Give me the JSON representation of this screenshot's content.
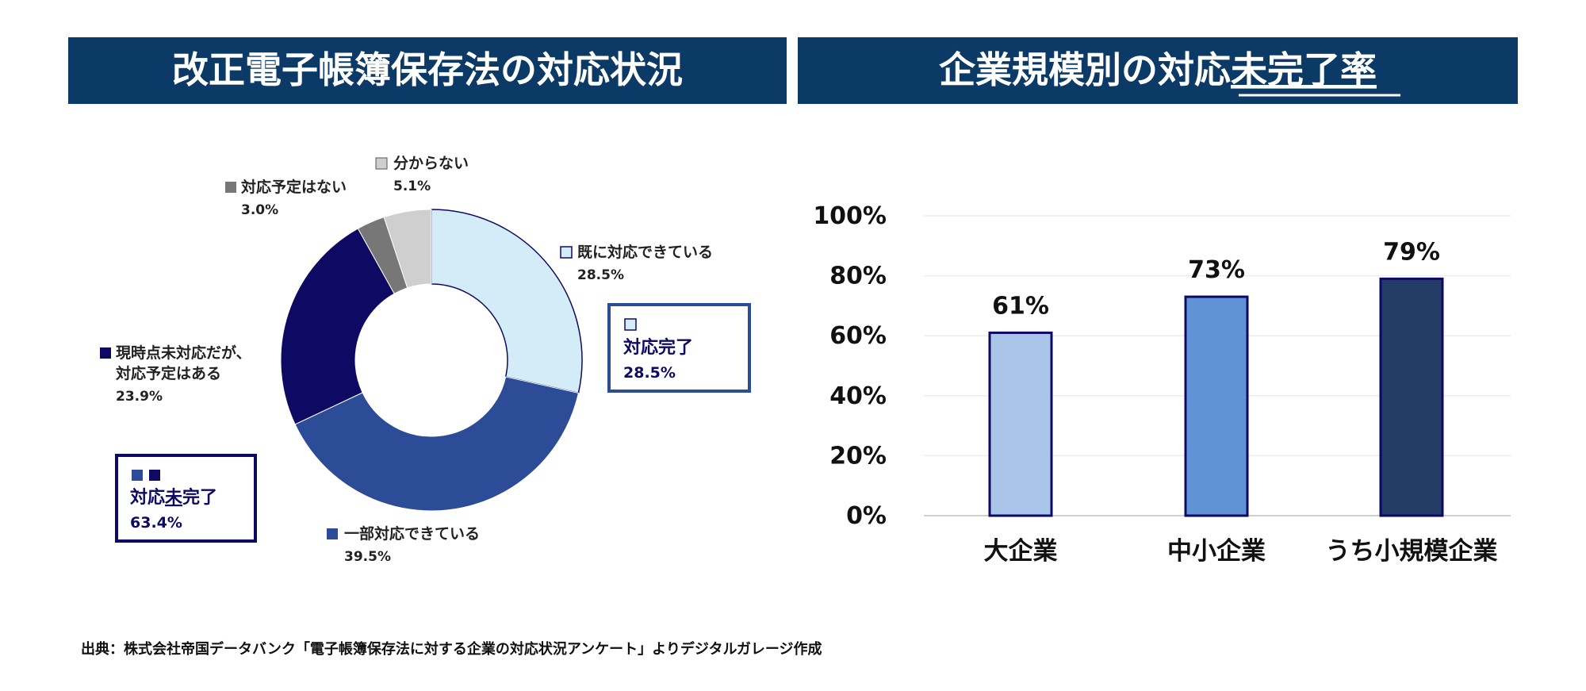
{
  "left_panel": {
    "title": "改正電子帳簿保存法の対応状況"
  },
  "right_panel": {
    "title_part1": "企業規模別の対応",
    "title_part2": "未完了率"
  },
  "callouts": {
    "completed": {
      "label": "対応完了",
      "value": "28.5%"
    },
    "incomplete": {
      "label_part1": "対応",
      "label_part2": "未",
      "label_part3": "完了",
      "value": "63.4%"
    }
  },
  "footer": {
    "source": "出典：株式会社帝国データバンク「電子帳簿保存法に対する企業の対応状況アンケート」よりデジタルガレージ作成"
  },
  "colors": {
    "header_bg": "#0b3a66",
    "already": "#d4ecf7",
    "partial": "#2c4c97",
    "planned": "#0e0a63",
    "none_planned": "#777777",
    "unknown": "#cfcfcf",
    "bar_large": "#a9c6ea",
    "bar_sme": "#5f93d6",
    "bar_small": "#233c66",
    "bar_outline": "#0e0a63",
    "callout_border_light": "#2c4c97",
    "callout_border_dark": "#0e0a63"
  },
  "chart_data": [
    {
      "type": "pie",
      "variant": "donut",
      "slices": [
        {
          "name": "既に対応できている",
          "value": 28.5,
          "label": "28.5%",
          "color": "#d4ecf7"
        },
        {
          "name": "一部対応できている",
          "value": 39.5,
          "label": "39.5%",
          "color": "#2c4c97"
        },
        {
          "name": "現時点未対応だが、対応予定はある",
          "name_line1": "現時点未対応だが、",
          "name_line2": "対応予定はある",
          "value": 23.9,
          "label": "23.9%",
          "color": "#0e0a63"
        },
        {
          "name": "対応予定はない",
          "value": 3.0,
          "label": "3.0%",
          "color": "#777777"
        },
        {
          "name": "分からない",
          "value": 5.1,
          "label": "5.1%",
          "color": "#cfcfcf"
        }
      ]
    },
    {
      "type": "bar",
      "categories": [
        "大企業",
        "中小企業",
        "うち小規模企業"
      ],
      "values": [
        61,
        73,
        79
      ],
      "value_labels": [
        "61%",
        "73%",
        "79%"
      ],
      "ylim": [
        0,
        100
      ],
      "yticks": [
        "0%",
        "20%",
        "40%",
        "60%",
        "80%",
        "100%"
      ],
      "grid": true
    }
  ]
}
